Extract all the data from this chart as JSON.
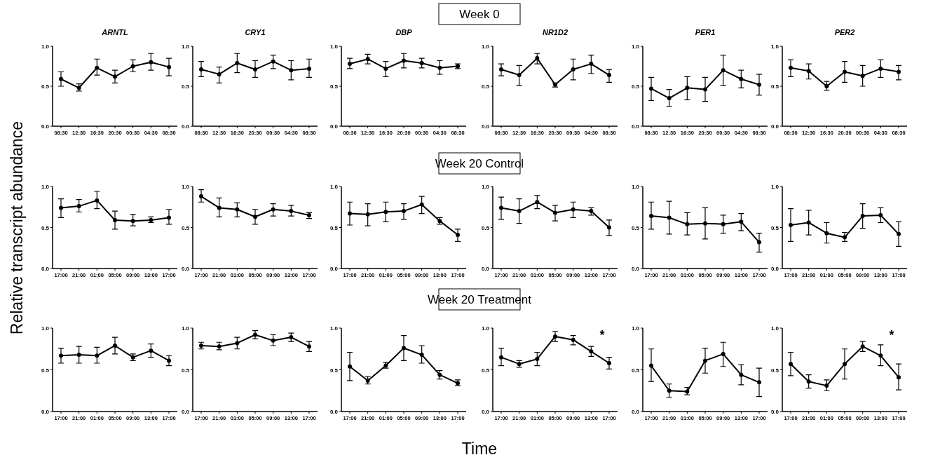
{
  "chart_data": [
    {
      "type": "line",
      "title": "ARNTL",
      "categories": [
        "08:30",
        "12:30",
        "16:30",
        "20:30",
        "00:30",
        "04:30",
        "08:30"
      ],
      "values": [
        0.59,
        0.48,
        0.73,
        0.62,
        0.75,
        0.8,
        0.74
      ],
      "errors": [
        [
          0.5,
          0.68
        ],
        [
          0.44,
          0.53
        ],
        [
          0.64,
          0.84
        ],
        [
          0.54,
          0.7
        ],
        [
          0.68,
          0.83
        ],
        [
          0.7,
          0.91
        ],
        [
          0.63,
          0.85
        ]
      ],
      "color": "#000000",
      "ylim": [
        0,
        1
      ],
      "yticks": [
        {
          "value": 0,
          "label": "0.0"
        },
        {
          "value": 0.5,
          "label": "0.5"
        },
        {
          "value": 1,
          "label": "1.0"
        }
      ],
      "marker": "circle",
      "line_style": "solid"
    },
    {
      "type": "line",
      "title": "CRY1",
      "categories": [
        "08:30",
        "12:30",
        "16:30",
        "20:30",
        "00:30",
        "04:30",
        "08:30"
      ],
      "values": [
        0.71,
        0.65,
        0.79,
        0.71,
        0.81,
        0.7,
        0.72
      ],
      "errors": [
        [
          0.62,
          0.81
        ],
        [
          0.54,
          0.74
        ],
        [
          0.67,
          0.91
        ],
        [
          0.61,
          0.82
        ],
        [
          0.72,
          0.89
        ],
        [
          0.58,
          0.82
        ],
        [
          0.61,
          0.84
        ]
      ],
      "color": "#000000",
      "ylim": [
        0,
        1
      ],
      "yticks": [
        {
          "value": 0,
          "label": "0.0"
        },
        {
          "value": 0.5,
          "label": "0.5"
        },
        {
          "value": 1,
          "label": "1.0"
        }
      ],
      "marker": "circle",
      "line_style": "solid"
    },
    {
      "type": "line",
      "title": "DBP",
      "categories": [
        "08:30",
        "12:30",
        "16:30",
        "20:30",
        "00:30",
        "04:30",
        "08:30"
      ],
      "values": [
        0.78,
        0.84,
        0.72,
        0.82,
        0.79,
        0.73,
        0.75
      ],
      "errors": [
        [
          0.72,
          0.85
        ],
        [
          0.78,
          0.9
        ],
        [
          0.62,
          0.81
        ],
        [
          0.73,
          0.91
        ],
        [
          0.73,
          0.85
        ],
        [
          0.65,
          0.82
        ],
        [
          0.72,
          0.78
        ]
      ],
      "color": "#000000",
      "ylim": [
        0,
        1
      ],
      "yticks": [
        {
          "value": 0,
          "label": "0.0"
        },
        {
          "value": 0.5,
          "label": "0.5"
        },
        {
          "value": 1,
          "label": "1.0"
        }
      ],
      "marker": "circle",
      "line_style": "solid"
    },
    {
      "type": "line",
      "title": "NR1D2",
      "categories": [
        "08:30",
        "12:30",
        "16:30",
        "20:30",
        "00:30",
        "04:30",
        "08:30"
      ],
      "values": [
        0.71,
        0.64,
        0.85,
        0.52,
        0.71,
        0.78,
        0.64
      ],
      "errors": [
        [
          0.63,
          0.78
        ],
        [
          0.51,
          0.76
        ],
        [
          0.78,
          0.91
        ],
        [
          0.49,
          0.54
        ],
        [
          0.58,
          0.84
        ],
        [
          0.66,
          0.89
        ],
        [
          0.55,
          0.71
        ]
      ],
      "color": "#000000",
      "ylim": [
        0,
        1
      ],
      "yticks": [
        {
          "value": 0,
          "label": "0.0"
        },
        {
          "value": 0.5,
          "label": "0.5"
        },
        {
          "value": 1,
          "label": "1.0"
        }
      ],
      "marker": "circle",
      "line_style": "solid"
    },
    {
      "type": "line",
      "title": "PER1",
      "categories": [
        "08:30",
        "12:30",
        "16:30",
        "20:30",
        "00:30",
        "04:30",
        "08:30"
      ],
      "values": [
        0.47,
        0.35,
        0.48,
        0.46,
        0.7,
        0.59,
        0.52
      ],
      "errors": [
        [
          0.32,
          0.61
        ],
        [
          0.25,
          0.46
        ],
        [
          0.33,
          0.62
        ],
        [
          0.31,
          0.61
        ],
        [
          0.51,
          0.89
        ],
        [
          0.48,
          0.7
        ],
        [
          0.39,
          0.65
        ]
      ],
      "color": "#000000",
      "ylim": [
        0,
        1
      ],
      "yticks": [
        {
          "value": 0,
          "label": "0.0"
        },
        {
          "value": 0.5,
          "label": "0.5"
        },
        {
          "value": 1,
          "label": "1.0"
        }
      ],
      "marker": "circle",
      "line_style": "solid"
    },
    {
      "type": "line",
      "title": "PER2",
      "categories": [
        "08:30",
        "12:30",
        "16:30",
        "20:30",
        "00:30",
        "04:30",
        "08:30"
      ],
      "values": [
        0.73,
        0.69,
        0.5,
        0.68,
        0.63,
        0.72,
        0.68
      ],
      "errors": [
        [
          0.62,
          0.83
        ],
        [
          0.59,
          0.78
        ],
        [
          0.45,
          0.56
        ],
        [
          0.55,
          0.81
        ],
        [
          0.5,
          0.76
        ],
        [
          0.61,
          0.83
        ],
        [
          0.58,
          0.76
        ]
      ],
      "color": "#000000",
      "ylim": [
        0,
        1
      ],
      "yticks": [
        {
          "value": 0,
          "label": "0.0"
        },
        {
          "value": 0.5,
          "label": "0.5"
        },
        {
          "value": 1,
          "label": "1.0"
        }
      ],
      "marker": "circle",
      "line_style": "solid"
    },
    {
      "type": "line",
      "categories": [
        "17:00",
        "21:00",
        "01:00",
        "05:00",
        "09:00",
        "13:00",
        "17:00"
      ],
      "values": [
        0.74,
        0.76,
        0.83,
        0.59,
        0.58,
        0.59,
        0.62
      ],
      "errors": [
        [
          0.62,
          0.85
        ],
        [
          0.69,
          0.84
        ],
        [
          0.73,
          0.94
        ],
        [
          0.48,
          0.7
        ],
        [
          0.52,
          0.66
        ],
        [
          0.56,
          0.63
        ],
        [
          0.54,
          0.72
        ]
      ],
      "color": "#000000",
      "ylim": [
        0,
        1
      ],
      "yticks": [
        {
          "value": 0,
          "label": "0.0"
        },
        {
          "value": 0.5,
          "label": "0.5"
        },
        {
          "value": 1,
          "label": "1.0"
        }
      ],
      "marker": "circle",
      "line_style": "solid"
    },
    {
      "type": "line",
      "categories": [
        "17:00",
        "21:00",
        "01:00",
        "05:00",
        "09:00",
        "13:00",
        "17:00"
      ],
      "values": [
        0.88,
        0.74,
        0.72,
        0.63,
        0.72,
        0.7,
        0.65
      ],
      "errors": [
        [
          0.81,
          0.96
        ],
        [
          0.63,
          0.86
        ],
        [
          0.63,
          0.8
        ],
        [
          0.54,
          0.72
        ],
        [
          0.64,
          0.79
        ],
        [
          0.64,
          0.77
        ],
        [
          0.61,
          0.68
        ]
      ],
      "color": "#000000",
      "ylim": [
        0,
        1
      ],
      "yticks": [
        {
          "value": 0,
          "label": "0.0"
        },
        {
          "value": 0.5,
          "label": "0.5"
        },
        {
          "value": 1,
          "label": "1.0"
        }
      ],
      "marker": "circle",
      "line_style": "solid"
    },
    {
      "type": "line",
      "categories": [
        "17:00",
        "21:00",
        "01:00",
        "05:00",
        "09:00",
        "13:00",
        "17:00"
      ],
      "values": [
        0.67,
        0.66,
        0.69,
        0.7,
        0.78,
        0.58,
        0.41
      ],
      "errors": [
        [
          0.53,
          0.81
        ],
        [
          0.52,
          0.79
        ],
        [
          0.57,
          0.81
        ],
        [
          0.6,
          0.79
        ],
        [
          0.67,
          0.88
        ],
        [
          0.54,
          0.62
        ],
        [
          0.33,
          0.48
        ]
      ],
      "color": "#000000",
      "ylim": [
        0,
        1
      ],
      "yticks": [
        {
          "value": 0,
          "label": "0.0"
        },
        {
          "value": 0.5,
          "label": "0.5"
        },
        {
          "value": 1,
          "label": "1.0"
        }
      ],
      "marker": "circle",
      "line_style": "solid"
    },
    {
      "type": "line",
      "categories": [
        "17:00",
        "21:00",
        "01:00",
        "05:00",
        "09:00",
        "13:00",
        "17:00"
      ],
      "values": [
        0.74,
        0.7,
        0.81,
        0.68,
        0.72,
        0.7,
        0.5
      ],
      "errors": [
        [
          0.6,
          0.87
        ],
        [
          0.55,
          0.85
        ],
        [
          0.73,
          0.89
        ],
        [
          0.58,
          0.77
        ],
        [
          0.62,
          0.81
        ],
        [
          0.65,
          0.74
        ],
        [
          0.4,
          0.59
        ]
      ],
      "color": "#000000",
      "ylim": [
        0,
        1
      ],
      "yticks": [
        {
          "value": 0,
          "label": "0.0"
        },
        {
          "value": 0.5,
          "label": "0.5"
        },
        {
          "value": 1,
          "label": "1.0"
        }
      ],
      "marker": "circle",
      "line_style": "solid"
    },
    {
      "type": "line",
      "categories": [
        "17:00",
        "21:00",
        "01:00",
        "05:00",
        "09:00",
        "13:00",
        "17:00"
      ],
      "values": [
        0.64,
        0.62,
        0.54,
        0.55,
        0.54,
        0.57,
        0.32
      ],
      "errors": [
        [
          0.48,
          0.81
        ],
        [
          0.42,
          0.82
        ],
        [
          0.41,
          0.68
        ],
        [
          0.36,
          0.74
        ],
        [
          0.43,
          0.65
        ],
        [
          0.46,
          0.67
        ],
        [
          0.2,
          0.43
        ]
      ],
      "color": "#000000",
      "ylim": [
        0,
        1
      ],
      "yticks": [
        {
          "value": 0,
          "label": "0.0"
        },
        {
          "value": 0.5,
          "label": "0.5"
        },
        {
          "value": 1,
          "label": "1.0"
        }
      ],
      "marker": "circle",
      "line_style": "solid"
    },
    {
      "type": "line",
      "categories": [
        "17:00",
        "21:00",
        "01:00",
        "05:00",
        "09:00",
        "13:00",
        "17:00"
      ],
      "values": [
        0.53,
        0.56,
        0.43,
        0.38,
        0.64,
        0.65,
        0.42
      ],
      "errors": [
        [
          0.33,
          0.73
        ],
        [
          0.41,
          0.71
        ],
        [
          0.31,
          0.56
        ],
        [
          0.33,
          0.44
        ],
        [
          0.49,
          0.79
        ],
        [
          0.56,
          0.74
        ],
        [
          0.27,
          0.57
        ]
      ],
      "color": "#000000",
      "ylim": [
        0,
        1
      ],
      "yticks": [
        {
          "value": 0,
          "label": "0.0"
        },
        {
          "value": 0.5,
          "label": "0.5"
        },
        {
          "value": 1,
          "label": "1.0"
        }
      ],
      "marker": "circle",
      "line_style": "solid"
    },
    {
      "type": "line",
      "categories": [
        "17:00",
        "21:00",
        "01:00",
        "05:00",
        "09:00",
        "13:00",
        "17:00"
      ],
      "values": [
        0.67,
        0.68,
        0.67,
        0.79,
        0.65,
        0.73,
        0.61
      ],
      "errors": [
        [
          0.58,
          0.76
        ],
        [
          0.58,
          0.78
        ],
        [
          0.58,
          0.77
        ],
        [
          0.69,
          0.89
        ],
        [
          0.61,
          0.69
        ],
        [
          0.65,
          0.81
        ],
        [
          0.55,
          0.67
        ]
      ],
      "color": "#000000",
      "ylim": [
        0,
        1
      ],
      "yticks": [
        {
          "value": 0,
          "label": "0.0"
        },
        {
          "value": 0.5,
          "label": "0.5"
        },
        {
          "value": 1,
          "label": "1.0"
        }
      ],
      "marker": "circle",
      "line_style": "solid"
    },
    {
      "type": "line",
      "categories": [
        "17:00",
        "21:00",
        "01:00",
        "05:00",
        "09:00",
        "13:00",
        "17:00"
      ],
      "values": [
        0.79,
        0.78,
        0.82,
        0.92,
        0.85,
        0.89,
        0.78
      ],
      "errors": [
        [
          0.75,
          0.83
        ],
        [
          0.74,
          0.83
        ],
        [
          0.75,
          0.89
        ],
        [
          0.87,
          0.97
        ],
        [
          0.79,
          0.92
        ],
        [
          0.84,
          0.94
        ],
        [
          0.72,
          0.84
        ]
      ],
      "color": "#000000",
      "ylim": [
        0,
        1
      ],
      "yticks": [
        {
          "value": 0,
          "label": "0.0"
        },
        {
          "value": 0.5,
          "label": "0.5"
        },
        {
          "value": 1,
          "label": "1.0"
        }
      ],
      "marker": "circle",
      "line_style": "solid"
    },
    {
      "type": "line",
      "categories": [
        "17:00",
        "21:00",
        "01:00",
        "05:00",
        "09:00",
        "13:00",
        "17:00"
      ],
      "values": [
        0.54,
        0.37,
        0.55,
        0.76,
        0.68,
        0.44,
        0.34
      ],
      "errors": [
        [
          0.37,
          0.71
        ],
        [
          0.33,
          0.42
        ],
        [
          0.52,
          0.59
        ],
        [
          0.61,
          0.91
        ],
        [
          0.58,
          0.79
        ],
        [
          0.39,
          0.49
        ],
        [
          0.31,
          0.38
        ]
      ],
      "color": "#000000",
      "ylim": [
        0,
        1
      ],
      "yticks": [
        {
          "value": 0,
          "label": "0.0"
        },
        {
          "value": 0.5,
          "label": "0.5"
        },
        {
          "value": 1,
          "label": "1.0"
        }
      ],
      "marker": "circle",
      "line_style": "solid"
    },
    {
      "type": "line",
      "annotations": [
        "*"
      ],
      "categories": [
        "17:00",
        "21:00",
        "01:00",
        "05:00",
        "09:00",
        "13:00",
        "17:00"
      ],
      "values": [
        0.65,
        0.57,
        0.63,
        0.9,
        0.86,
        0.72,
        0.58
      ],
      "errors": [
        [
          0.55,
          0.76
        ],
        [
          0.53,
          0.61
        ],
        [
          0.55,
          0.71
        ],
        [
          0.84,
          0.96
        ],
        [
          0.8,
          0.91
        ],
        [
          0.66,
          0.78
        ],
        [
          0.51,
          0.65
        ]
      ],
      "color": "#000000",
      "ylim": [
        0,
        1
      ],
      "yticks": [
        {
          "value": 0,
          "label": "0.0"
        },
        {
          "value": 0.5,
          "label": "0.5"
        },
        {
          "value": 1,
          "label": "1.0"
        }
      ],
      "marker": "circle",
      "line_style": "solid"
    },
    {
      "type": "line",
      "categories": [
        "17:00",
        "21:00",
        "01:00",
        "05:00",
        "09:00",
        "13:00",
        "17:00"
      ],
      "values": [
        0.55,
        0.25,
        0.24,
        0.61,
        0.69,
        0.44,
        0.35
      ],
      "errors": [
        [
          0.36,
          0.75
        ],
        [
          0.17,
          0.33
        ],
        [
          0.2,
          0.29
        ],
        [
          0.46,
          0.76
        ],
        [
          0.54,
          0.83
        ],
        [
          0.32,
          0.56
        ],
        [
          0.18,
          0.52
        ]
      ],
      "color": "#000000",
      "ylim": [
        0,
        1
      ],
      "yticks": [
        {
          "value": 0,
          "label": "0.0"
        },
        {
          "value": 0.5,
          "label": "0.5"
        },
        {
          "value": 1,
          "label": "1.0"
        }
      ],
      "marker": "circle",
      "line_style": "solid"
    },
    {
      "type": "line",
      "annotations": [
        "*"
      ],
      "categories": [
        "17:00",
        "21:00",
        "01:00",
        "05:00",
        "09:00",
        "13:00",
        "17:00"
      ],
      "values": [
        0.57,
        0.36,
        0.31,
        0.57,
        0.78,
        0.67,
        0.41
      ],
      "errors": [
        [
          0.43,
          0.71
        ],
        [
          0.28,
          0.44
        ],
        [
          0.25,
          0.38
        ],
        [
          0.39,
          0.75
        ],
        [
          0.72,
          0.84
        ],
        [
          0.55,
          0.8
        ],
        [
          0.26,
          0.57
        ]
      ],
      "color": "#000000",
      "ylim": [
        0,
        1
      ],
      "yticks": [
        {
          "value": 0,
          "label": "0.0"
        },
        {
          "value": 0.5,
          "label": "0.5"
        },
        {
          "value": 1,
          "label": "1.0"
        }
      ],
      "marker": "circle",
      "line_style": "solid"
    },
    {
      "type": "other",
      "title": "Week 0"
    },
    {
      "type": "other",
      "title": "Week 20 Control"
    },
    {
      "type": "other",
      "title": "Week 20 Treatment"
    },
    {
      "type": "other",
      "ylabel": "Relative transcript abundance"
    },
    {
      "type": "other",
      "xlabel": "Time"
    }
  ]
}
